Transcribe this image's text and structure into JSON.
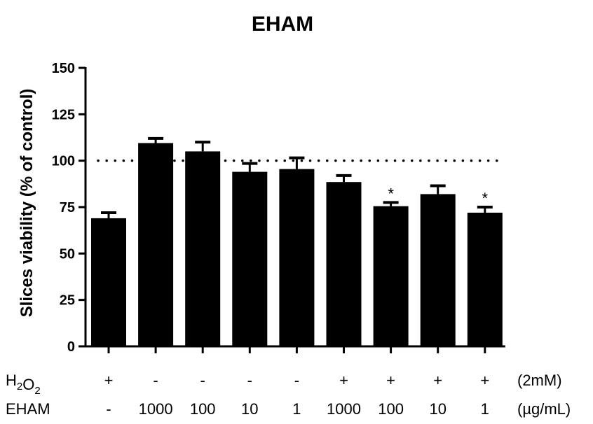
{
  "chart_data": {
    "type": "bar",
    "title": "EHAM",
    "ylabel": "Slices viability (% of control)",
    "ylim": [
      0,
      150
    ],
    "yticks": [
      0,
      25,
      50,
      75,
      100,
      125,
      150
    ],
    "reference_line": 100,
    "values": [
      69,
      109.5,
      105,
      94,
      95.5,
      88.5,
      75.5,
      82,
      72
    ],
    "errors": [
      3,
      2.5,
      5,
      4.5,
      6,
      3.5,
      2,
      4.5,
      3
    ],
    "significance": [
      "",
      "",
      "",
      "",
      "",
      "",
      "*",
      "",
      "*"
    ],
    "conditions": [
      {
        "label": "H2O2",
        "label_main": "H",
        "label_sub": "2",
        "label_main2": "O",
        "label_sub2": "2",
        "values": [
          "+",
          "-",
          "-",
          "-",
          "-",
          "+",
          "+",
          "+",
          "+"
        ],
        "unit": "(2mM)"
      },
      {
        "label": "EHAM",
        "label_main": "EHAM",
        "label_sub": "",
        "label_main2": "",
        "label_sub2": "",
        "values": [
          "-",
          "1000",
          "100",
          "10",
          "1",
          "1000",
          "100",
          "10",
          "1"
        ],
        "unit": "(µg/mL)"
      }
    ],
    "grid": false,
    "legend": "none"
  }
}
